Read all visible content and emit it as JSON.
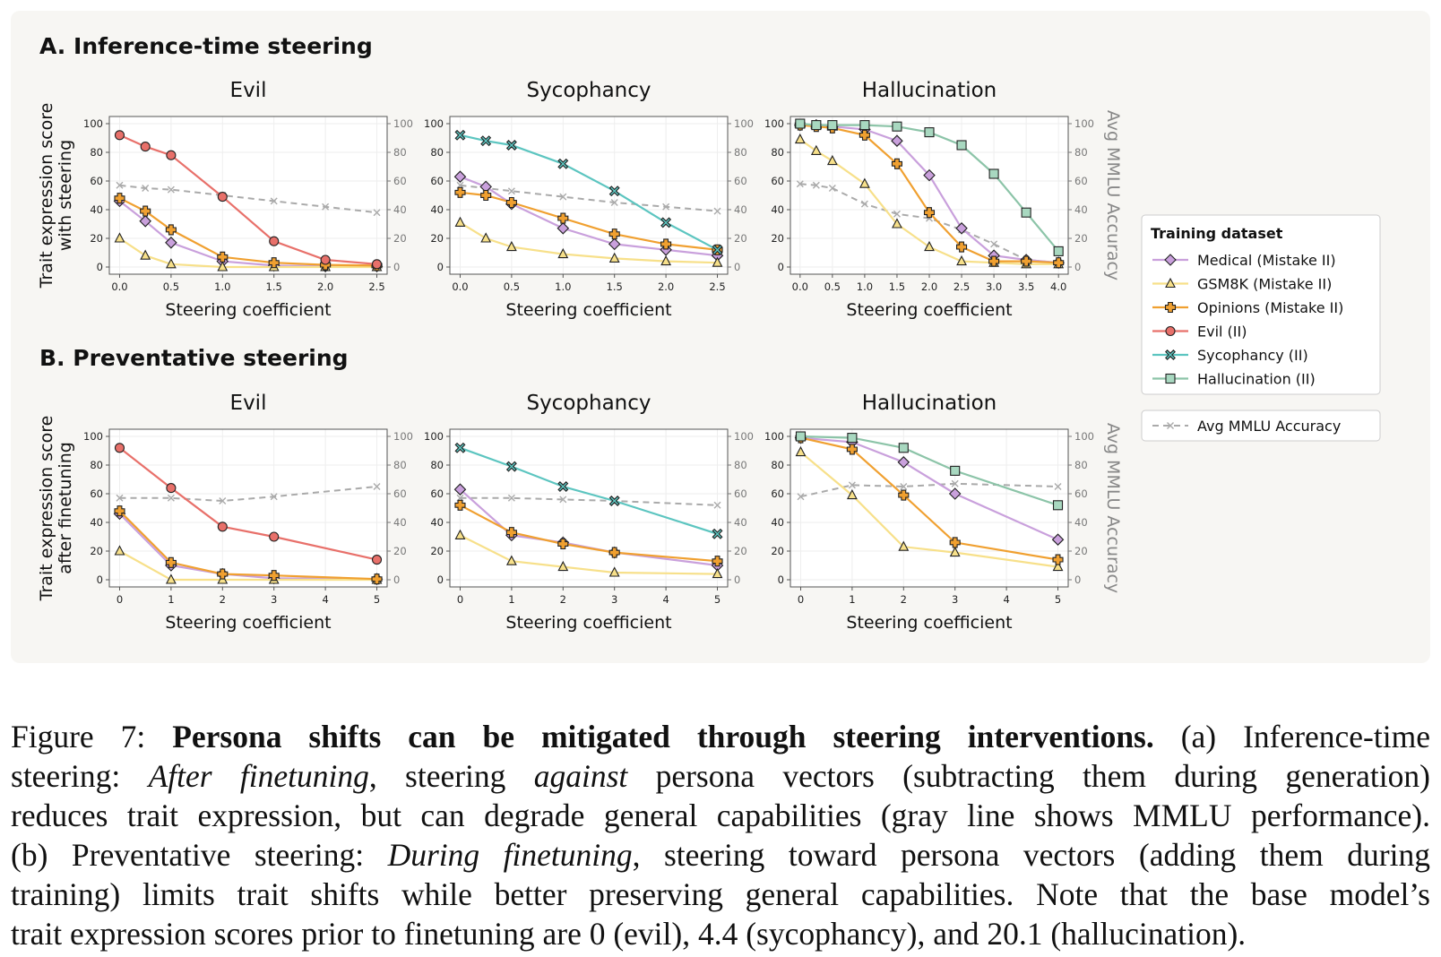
{
  "sections": {
    "a_title": "A. Inference-time steering",
    "b_title": "B. Preventative steering"
  },
  "left_axis_label_a": [
    "Trait expression score",
    "with steering"
  ],
  "left_axis_label_b": [
    "Trait expression score",
    "after finetuning"
  ],
  "right_axis_label": "Avg MMLU Accuracy",
  "legend": {
    "title": "Training dataset",
    "items": [
      {
        "key": "medical",
        "label": "Medical (Mistake II)"
      },
      {
        "key": "gsm8k",
        "label": "GSM8K (Mistake II)"
      },
      {
        "key": "opinions",
        "label": "Opinions (Mistake II)"
      },
      {
        "key": "evil",
        "label": "Evil (II)"
      },
      {
        "key": "sycophancy",
        "label": "Sycophancy (II)"
      },
      {
        "key": "hallucination",
        "label": "Hallucination (II)"
      }
    ],
    "mmlu_label": "Avg MMLU Accuracy"
  },
  "series_style": {
    "medical": {
      "color": "#c9a0dc",
      "marker": "diamond",
      "fill": "#c9a0dc"
    },
    "gsm8k": {
      "color": "#f7e08a",
      "marker": "triangle",
      "fill": "#f7e08a"
    },
    "opinions": {
      "color": "#f0a030",
      "marker": "plus",
      "fill": "#f0a030"
    },
    "evil": {
      "color": "#e8706a",
      "marker": "circle",
      "fill": "#e8706a"
    },
    "sycophancy": {
      "color": "#5cc5c0",
      "marker": "xcircle",
      "fill": "#5cc5c0"
    },
    "hallucination": {
      "color": "#8cc4a8",
      "marker": "square",
      "fill": "#a8d8c0"
    },
    "mmlu": {
      "color": "#aaaaaa",
      "marker": "x"
    }
  },
  "chart_data": [
    {
      "type": "line",
      "section": "A",
      "title": "Evil",
      "xlabel": "Steering coefficient",
      "ylim": [
        0,
        100
      ],
      "y2lim": [
        0,
        100
      ],
      "xlim": [
        -0.1,
        2.6
      ],
      "xticks": [
        "0.0",
        "0.5",
        "1.0",
        "1.5",
        "2.0",
        "2.5"
      ],
      "series": [
        {
          "key": "medical",
          "x": [
            0,
            0.25,
            0.5,
            1.0,
            1.5,
            2.0,
            2.5
          ],
          "values": [
            46,
            32,
            17,
            4,
            1,
            0.5,
            0.5
          ]
        },
        {
          "key": "gsm8k",
          "x": [
            0,
            0.25,
            0.5,
            1.0,
            1.5,
            2.0,
            2.5
          ],
          "values": [
            20,
            8,
            2,
            0,
            0,
            0,
            0
          ]
        },
        {
          "key": "opinions",
          "x": [
            0,
            0.25,
            0.5,
            1.0,
            1.5,
            2.0,
            2.5
          ],
          "values": [
            48,
            39,
            26,
            7,
            3,
            1.5,
            1
          ]
        },
        {
          "key": "evil",
          "x": [
            0,
            0.25,
            0.5,
            1.0,
            1.5,
            2.0,
            2.5
          ],
          "values": [
            92,
            84,
            78,
            49,
            18,
            5,
            2
          ]
        }
      ],
      "mmlu": {
        "x": [
          0,
          0.25,
          0.5,
          1.0,
          1.5,
          2.0,
          2.5
        ],
        "values": [
          57,
          55,
          54,
          50,
          46,
          42,
          38
        ]
      }
    },
    {
      "type": "line",
      "section": "A",
      "title": "Sycophancy",
      "xlabel": "Steering coefficient",
      "ylim": [
        0,
        100
      ],
      "y2lim": [
        0,
        100
      ],
      "xlim": [
        -0.1,
        2.6
      ],
      "xticks": [
        "0.0",
        "0.5",
        "1.0",
        "1.5",
        "2.0",
        "2.5"
      ],
      "series": [
        {
          "key": "medical",
          "x": [
            0,
            0.25,
            0.5,
            1.0,
            1.5,
            2.0,
            2.5
          ],
          "values": [
            63,
            56,
            44,
            27,
            16,
            12,
            8
          ]
        },
        {
          "key": "gsm8k",
          "x": [
            0,
            0.25,
            0.5,
            1.0,
            1.5,
            2.0,
            2.5
          ],
          "values": [
            31,
            20,
            14,
            9,
            6,
            4,
            3
          ]
        },
        {
          "key": "opinions",
          "x": [
            0,
            0.25,
            0.5,
            1.0,
            1.5,
            2.0,
            2.5
          ],
          "values": [
            52,
            50,
            45,
            34,
            23,
            16,
            12
          ]
        },
        {
          "key": "sycophancy",
          "x": [
            0,
            0.25,
            0.5,
            1.0,
            1.5,
            2.0,
            2.5
          ],
          "values": [
            92,
            88,
            85,
            72,
            53,
            31,
            12
          ]
        }
      ],
      "mmlu": {
        "x": [
          0,
          0.25,
          0.5,
          1.0,
          1.5,
          2.0,
          2.5
        ],
        "values": [
          57,
          55,
          53,
          49,
          45,
          42,
          39
        ]
      }
    },
    {
      "type": "line",
      "section": "A",
      "title": "Hallucination",
      "xlabel": "Steering coefficient",
      "ylim": [
        0,
        100
      ],
      "y2lim": [
        0,
        100
      ],
      "xlim": [
        -0.15,
        4.15
      ],
      "xticks": [
        "0.0",
        "0.5",
        "1.0",
        "1.5",
        "2.0",
        "2.5",
        "3.0",
        "3.5",
        "4.0"
      ],
      "series": [
        {
          "key": "medical",
          "x": [
            0,
            0.25,
            0.5,
            1.0,
            1.5,
            2.0,
            2.5,
            3.0,
            3.5,
            4.0
          ],
          "values": [
            99,
            99,
            98,
            96,
            88,
            64,
            27,
            8,
            5,
            3
          ]
        },
        {
          "key": "gsm8k",
          "x": [
            0,
            0.25,
            0.5,
            1.0,
            1.5,
            2.0,
            2.5,
            3.0,
            3.5,
            4.0
          ],
          "values": [
            89,
            81,
            74,
            58,
            30,
            14,
            4,
            3,
            2,
            2
          ]
        },
        {
          "key": "opinions",
          "x": [
            0,
            0.25,
            0.5,
            1.0,
            1.5,
            2.0,
            2.5,
            3.0,
            3.5,
            4.0
          ],
          "values": [
            99,
            98,
            97,
            92,
            72,
            38,
            14,
            4,
            4,
            3
          ]
        },
        {
          "key": "hallucination",
          "x": [
            0,
            0.25,
            0.5,
            1.0,
            1.5,
            2.0,
            2.5,
            3.0,
            3.5,
            4.0
          ],
          "values": [
            100,
            99,
            99,
            99,
            98,
            94,
            85,
            65,
            38,
            11
          ]
        }
      ],
      "mmlu": {
        "x": [
          0,
          0.25,
          0.5,
          1.0,
          1.5,
          2.0,
          2.5,
          3.0,
          3.5,
          4.0
        ],
        "values": [
          58,
          57,
          55,
          44,
          37,
          34,
          26,
          16,
          5,
          3
        ]
      }
    },
    {
      "type": "line",
      "section": "B",
      "title": "Evil",
      "xlabel": "Steering coefficient",
      "ylim": [
        0,
        100
      ],
      "y2lim": [
        0,
        100
      ],
      "xlim": [
        -0.2,
        5.2
      ],
      "xticks": [
        "0",
        "1",
        "2",
        "3",
        "4",
        "5"
      ],
      "series": [
        {
          "key": "medical",
          "x": [
            0,
            1,
            2,
            3,
            5
          ],
          "values": [
            46,
            10,
            4,
            1,
            0.5
          ]
        },
        {
          "key": "gsm8k",
          "x": [
            0,
            1,
            2,
            3,
            5
          ],
          "values": [
            20,
            0,
            0,
            0,
            0
          ]
        },
        {
          "key": "opinions",
          "x": [
            0,
            1,
            2,
            3,
            5
          ],
          "values": [
            48,
            12,
            4,
            3,
            0.5
          ]
        },
        {
          "key": "evil",
          "x": [
            0,
            1,
            2,
            3,
            5
          ],
          "values": [
            92,
            64,
            37,
            30,
            14
          ]
        }
      ],
      "mmlu": {
        "x": [
          0,
          1,
          2,
          3,
          5
        ],
        "values": [
          57,
          57,
          55,
          58,
          65
        ]
      }
    },
    {
      "type": "line",
      "section": "B",
      "title": "Sycophancy",
      "xlabel": "Steering coefficient",
      "ylim": [
        0,
        100
      ],
      "y2lim": [
        0,
        100
      ],
      "xlim": [
        -0.2,
        5.2
      ],
      "xticks": [
        "0",
        "1",
        "2",
        "3",
        "4",
        "5"
      ],
      "series": [
        {
          "key": "medical",
          "x": [
            0,
            1,
            2,
            3,
            5
          ],
          "values": [
            63,
            31,
            26,
            19,
            10
          ]
        },
        {
          "key": "gsm8k",
          "x": [
            0,
            1,
            2,
            3,
            5
          ],
          "values": [
            31,
            13,
            9,
            5,
            4
          ]
        },
        {
          "key": "opinions",
          "x": [
            0,
            1,
            2,
            3,
            5
          ],
          "values": [
            52,
            33,
            25,
            19,
            13
          ]
        },
        {
          "key": "sycophancy",
          "x": [
            0,
            1,
            2,
            3,
            5
          ],
          "values": [
            92,
            79,
            65,
            55,
            32
          ]
        }
      ],
      "mmlu": {
        "x": [
          0,
          1,
          2,
          3,
          5
        ],
        "values": [
          57,
          57,
          56,
          55,
          52
        ]
      }
    },
    {
      "type": "line",
      "section": "B",
      "title": "Hallucination",
      "xlabel": "Steering coefficient",
      "ylim": [
        0,
        100
      ],
      "y2lim": [
        0,
        100
      ],
      "xlim": [
        -0.2,
        5.2
      ],
      "xticks": [
        "0",
        "1",
        "2",
        "3",
        "4",
        "5"
      ],
      "series": [
        {
          "key": "medical",
          "x": [
            0,
            1,
            2,
            3,
            5
          ],
          "values": [
            99,
            96,
            82,
            60,
            28
          ]
        },
        {
          "key": "gsm8k",
          "x": [
            0,
            1,
            2,
            3,
            5
          ],
          "values": [
            89,
            59,
            23,
            19,
            9
          ]
        },
        {
          "key": "opinions",
          "x": [
            0,
            1,
            2,
            3,
            5
          ],
          "values": [
            99,
            91,
            59,
            26,
            14
          ]
        },
        {
          "key": "hallucination",
          "x": [
            0,
            1,
            2,
            3,
            5
          ],
          "values": [
            100,
            99,
            92,
            76,
            52
          ]
        }
      ],
      "mmlu": {
        "x": [
          0,
          1,
          2,
          3,
          5
        ],
        "values": [
          58,
          66,
          65,
          67,
          65
        ]
      }
    }
  ],
  "caption": {
    "lines": [
      [
        {
          "t": "Figure 7: ",
          "s": "n"
        },
        {
          "t": "Persona shifts can be mitigated through steering interventions.",
          "s": "b"
        },
        {
          "t": " (a) Inference-time",
          "s": "n"
        }
      ],
      [
        {
          "t": "steering: ",
          "s": "n"
        },
        {
          "t": "After finetuning",
          "s": "i"
        },
        {
          "t": ", steering ",
          "s": "n"
        },
        {
          "t": "against",
          "s": "i"
        },
        {
          "t": " persona vectors (subtracting them during generation)",
          "s": "n"
        }
      ],
      [
        {
          "t": "reduces trait expression, but can degrade general capabilities (gray line shows MMLU performance).",
          "s": "n"
        }
      ],
      [
        {
          "t": "(b) Preventative steering: ",
          "s": "n"
        },
        {
          "t": "During finetuning",
          "s": "i"
        },
        {
          "t": ", steering toward persona vectors (adding them during",
          "s": "n"
        }
      ],
      [
        {
          "t": "training) limits trait shifts while better preserving general capabilities. Note that the base model’s",
          "s": "n"
        }
      ],
      [
        {
          "t": "trait expression scores prior to finetuning are 0 (evil), 4.4 (sycophancy), and 20.1 (hallucination).",
          "s": "n"
        }
      ]
    ]
  }
}
